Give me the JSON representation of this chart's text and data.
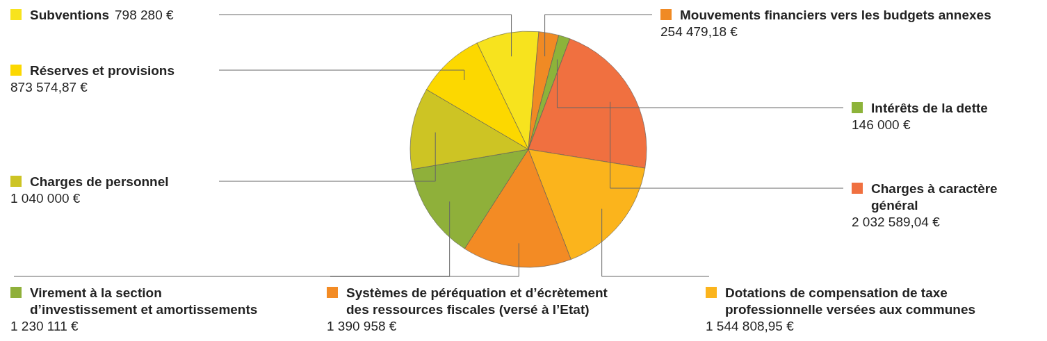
{
  "chart_data": {
    "type": "pie",
    "categories": [
      "Subventions",
      "Mouvements financiers vers les budgets annexes",
      "Intérêts de la dette",
      "Charges à caractère général",
      "Dotations de compensation de taxe professionnelle versées aux communes",
      "Systèmes de péréquation et d’écrètement des ressources fiscales (versé à l’Etat)",
      "Virement à la section d’investissement et amortissements",
      "Charges de personnel",
      "Réserves et provisions"
    ],
    "values": [
      798280,
      254479.18,
      146000,
      2032589.04,
      1544808.95,
      1390958,
      1230111,
      1040000,
      873574.87
    ],
    "value_labels": [
      "798 280 €",
      "254 479,18 €",
      "146 000 €",
      "2 032 589,04 €",
      "1 544 808,95 €",
      "1 390 958 €",
      "1 230 111 €",
      "1 040 000 €",
      "873 574,87 €"
    ],
    "colors": [
      "#f7e31e",
      "#f08a24",
      "#8db33a",
      "#f07040",
      "#fbb41c",
      "#f38b24",
      "#8fb03a",
      "#cdc424",
      "#fcd800"
    ],
    "legend": "left"
  }
}
